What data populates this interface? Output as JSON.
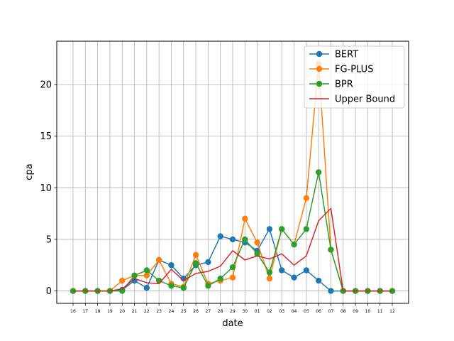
{
  "chart_data": {
    "type": "line",
    "xlabel": "date",
    "ylabel": "cpa",
    "ylim": [
      -1.2,
      24.2
    ],
    "yticks": [
      0,
      5,
      10,
      15,
      20
    ],
    "grid": true,
    "legend_position": "top-right",
    "categories": [
      "16",
      "17",
      "18",
      "19",
      "20",
      "21",
      "22",
      "23",
      "24",
      "25",
      "26",
      "27",
      "28",
      "29",
      "30",
      "01",
      "02",
      "03",
      "04",
      "05",
      "06",
      "07",
      "08",
      "09",
      "10",
      "11",
      "12"
    ],
    "series": [
      {
        "name": "BERT",
        "color": "#1f77b4",
        "marker": true,
        "values": [
          0,
          0,
          0,
          0,
          0.1,
          1.0,
          0.3,
          3.0,
          2.5,
          1.2,
          2.5,
          2.8,
          5.3,
          5.0,
          4.7,
          3.9,
          6.0,
          2.0,
          1.3,
          2.0,
          1.0,
          0,
          0,
          0,
          0,
          0,
          0
        ]
      },
      {
        "name": "FG-PLUS",
        "color": "#ff7f0e",
        "marker": true,
        "values": [
          0,
          0,
          0,
          0,
          1.0,
          1.5,
          1.5,
          3.0,
          0.7,
          0.4,
          3.5,
          0.7,
          1.0,
          1.3,
          7.0,
          4.7,
          1.2,
          6.0,
          4.5,
          9.0,
          22.0,
          4.0,
          0,
          0,
          0,
          0,
          0
        ]
      },
      {
        "name": "BPR",
        "color": "#2ca02c",
        "marker": true,
        "values": [
          0,
          0,
          0,
          0,
          0,
          1.5,
          2.0,
          1.0,
          0.5,
          0.3,
          2.7,
          0.5,
          1.2,
          2.3,
          5.0,
          3.6,
          1.8,
          6.0,
          4.5,
          6.0,
          11.5,
          4.0,
          0,
          0,
          0,
          0,
          0
        ]
      },
      {
        "name": "Upper Bound",
        "color": "#d62728",
        "marker": false,
        "values": [
          0,
          0,
          0,
          0,
          0.2,
          1.2,
          0.8,
          0.7,
          2.1,
          1.0,
          1.7,
          1.9,
          2.4,
          3.9,
          3.0,
          3.4,
          3.1,
          3.6,
          2.5,
          3.4,
          6.8,
          8.0,
          0,
          0,
          0,
          0,
          0
        ]
      }
    ]
  }
}
